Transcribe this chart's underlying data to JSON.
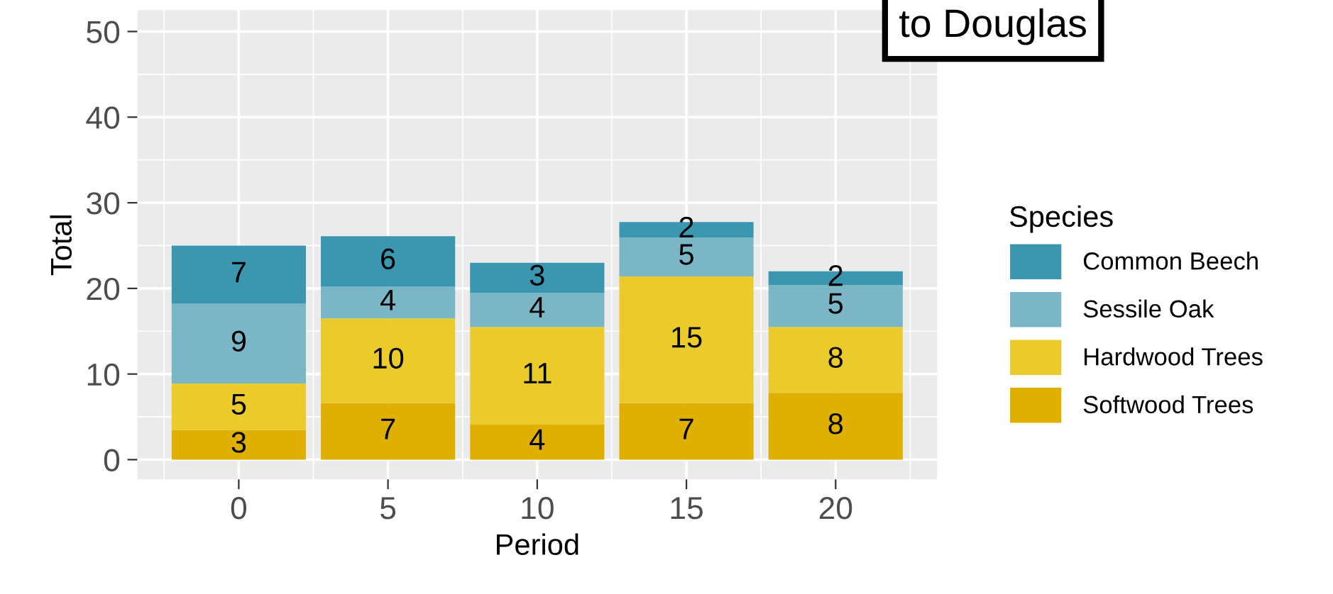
{
  "chart_data": {
    "type": "bar",
    "stacked": true,
    "xlabel": "Period",
    "ylabel": "Total",
    "legend_title": "Species",
    "legend": "right",
    "x": [
      0,
      5,
      10,
      15,
      20
    ],
    "xlim": [
      -3.4,
      23.4
    ],
    "xticks": [
      0,
      5,
      10,
      15,
      20
    ],
    "ylim": [
      -2.3,
      52.5
    ],
    "yticks": [
      0,
      10,
      20,
      30,
      40,
      50
    ],
    "grid": true,
    "series": [
      {
        "name": "Softwood Trees",
        "color": "#e0b000",
        "values": [
          3.45,
          6.6,
          4.1,
          6.6,
          7.8
        ],
        "value_labels": [
          "3",
          "7",
          "4",
          "7",
          "8"
        ]
      },
      {
        "name": "Hardwood Trees",
        "color": "#ebcb2b",
        "values": [
          5.45,
          9.9,
          11.4,
          14.8,
          7.7
        ],
        "value_labels": [
          "5",
          "10",
          "11",
          "15",
          "8"
        ]
      },
      {
        "name": "Sessile Oak",
        "color": "#7bb6c6",
        "values": [
          9.3,
          3.7,
          4.0,
          4.55,
          4.9
        ],
        "value_labels": [
          "9",
          "4",
          "4",
          "5",
          "5"
        ]
      },
      {
        "name": "Common Beech",
        "color": "#3b97b0",
        "values": [
          6.8,
          5.9,
          3.5,
          1.8,
          1.6
        ],
        "value_labels": [
          "7",
          "6",
          "3",
          "2",
          "2"
        ]
      }
    ],
    "annotations": [
      "to Douglas"
    ]
  }
}
